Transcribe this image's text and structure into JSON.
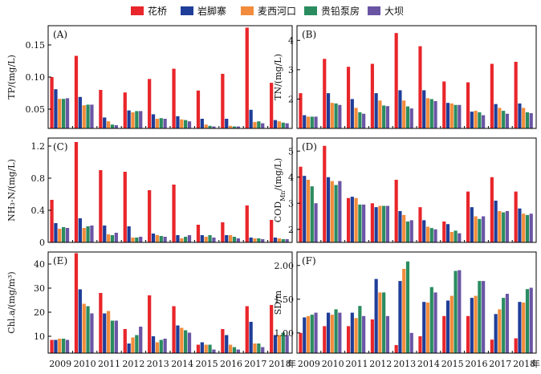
{
  "legend": [
    "花桥",
    "岩脚寨",
    "麦西河口",
    "贵铅泵房",
    "大坝"
  ],
  "colors": [
    "#e8262b",
    "#1f3e99",
    "#f28c3c",
    "#2a8c5f",
    "#6a55a5"
  ],
  "chart_data": [
    {
      "type": "bar",
      "panel_label": "(A)",
      "ylabel": "TP/(mg/L)",
      "ylim": [
        0.02,
        0.18
      ],
      "yticks": [
        0.05,
        0.1,
        0.15
      ],
      "ytick_labels": [
        "0.05",
        "0.10",
        "0.15"
      ],
      "categories": [
        "2009",
        "2010",
        "2011",
        "2012",
        "2013",
        "2014",
        "2015",
        "2016",
        "2017",
        "2018"
      ],
      "series": [
        {
          "name": "花桥",
          "values": [
            0.1,
            0.133,
            0.08,
            0.076,
            0.097,
            0.113,
            0.079,
            0.105,
            0.177,
            0.091
          ]
        },
        {
          "name": "岩脚寨",
          "values": [
            0.081,
            0.069,
            0.037,
            0.048,
            0.042,
            0.039,
            0.035,
            0.035,
            0.049,
            0.033
          ]
        },
        {
          "name": "麦西河口",
          "values": [
            0.066,
            0.056,
            0.031,
            0.045,
            0.035,
            0.034,
            0.026,
            0.024,
            0.03,
            0.031
          ]
        },
        {
          "name": "贵铅泵房",
          "values": [
            0.066,
            0.057,
            0.026,
            0.047,
            0.036,
            0.033,
            0.024,
            0.023,
            0.031,
            0.029
          ]
        },
        {
          "name": "大坝",
          "values": [
            0.067,
            0.057,
            0.025,
            0.047,
            0.035,
            0.031,
            0.023,
            0.023,
            0.028,
            0.028
          ]
        }
      ]
    },
    {
      "type": "bar",
      "panel_label": "(B)",
      "ylabel": "TN/(mg/L)",
      "ylim": [
        1.0,
        4.5
      ],
      "yticks": [
        2,
        3,
        4
      ],
      "ytick_labels": [
        "2",
        "3",
        "4"
      ],
      "categories": [
        "2009",
        "2010",
        "2011",
        "2012",
        "2013",
        "2014",
        "2015",
        "2016",
        "2017",
        "2018"
      ],
      "series": [
        {
          "name": "花桥",
          "values": [
            2.2,
            3.37,
            3.1,
            3.2,
            4.25,
            3.8,
            2.6,
            2.57,
            3.2,
            3.27
          ]
        },
        {
          "name": "岩脚寨",
          "values": [
            1.45,
            2.2,
            2.0,
            2.2,
            2.3,
            2.3,
            1.87,
            1.57,
            1.83,
            1.85
          ]
        },
        {
          "name": "麦西河口",
          "values": [
            1.4,
            1.87,
            1.7,
            1.95,
            1.95,
            2.03,
            1.85,
            1.6,
            1.7,
            1.7
          ]
        },
        {
          "name": "贵铅泵房",
          "values": [
            1.4,
            1.85,
            1.55,
            1.78,
            1.75,
            2.0,
            1.8,
            1.55,
            1.6,
            1.55
          ]
        },
        {
          "name": "大坝",
          "values": [
            1.4,
            1.8,
            1.5,
            1.76,
            1.68,
            1.93,
            1.8,
            1.45,
            1.5,
            1.52
          ]
        }
      ]
    },
    {
      "type": "bar",
      "panel_label": "(C)",
      "ylabel": "NH₃-N/(mg/L)",
      "ylim": [
        0,
        1.3
      ],
      "yticks": [
        0,
        0.4,
        0.8,
        1.2
      ],
      "ytick_labels": [
        "0",
        "0.4",
        "0.8",
        "1.2"
      ],
      "categories": [
        "2009",
        "2010",
        "2011",
        "2012",
        "2013",
        "2014",
        "2015",
        "2016",
        "2017",
        "2018"
      ],
      "series": [
        {
          "name": "花桥",
          "values": [
            0.53,
            1.25,
            0.9,
            0.88,
            0.65,
            0.72,
            0.22,
            0.25,
            0.46,
            0.28
          ]
        },
        {
          "name": "岩脚寨",
          "values": [
            0.24,
            0.3,
            0.21,
            0.2,
            0.11,
            0.09,
            0.09,
            0.09,
            0.06,
            0.06
          ]
        },
        {
          "name": "麦西河口",
          "values": [
            0.17,
            0.18,
            0.1,
            0.06,
            0.09,
            0.05,
            0.07,
            0.09,
            0.05,
            0.05
          ]
        },
        {
          "name": "贵铅泵房",
          "values": [
            0.19,
            0.2,
            0.09,
            0.06,
            0.08,
            0.07,
            0.09,
            0.07,
            0.05,
            0.04
          ]
        },
        {
          "name": "大坝",
          "values": [
            0.18,
            0.21,
            0.12,
            0.07,
            0.07,
            0.09,
            0.06,
            0.05,
            0.04,
            0.04
          ]
        }
      ]
    },
    {
      "type": "bar",
      "panel_label": "(D)",
      "ylabel": "COD_Mn/(mg/L)",
      "ylim": [
        1.5,
        5.5
      ],
      "yticks": [
        2,
        3,
        4,
        5
      ],
      "ytick_labels": [
        "2",
        "3",
        "4",
        "5"
      ],
      "categories": [
        "2009",
        "2010",
        "2011",
        "2012",
        "2013",
        "2014",
        "2015",
        "2016",
        "2017",
        "2018"
      ],
      "series": [
        {
          "name": "花桥",
          "values": [
            4.4,
            5.2,
            3.2,
            3.0,
            3.9,
            2.85,
            2.3,
            3.45,
            4.0,
            3.45
          ]
        },
        {
          "name": "岩脚寨",
          "values": [
            4.05,
            4.0,
            3.25,
            2.85,
            2.7,
            2.35,
            2.2,
            2.85,
            3.1,
            2.8
          ]
        },
        {
          "name": "麦西河口",
          "values": [
            3.9,
            3.85,
            3.2,
            2.9,
            2.55,
            2.1,
            1.9,
            2.5,
            2.7,
            2.6
          ]
        },
        {
          "name": "贵铅泵房",
          "values": [
            3.65,
            3.7,
            2.95,
            2.9,
            2.3,
            2.05,
            1.95,
            2.4,
            2.65,
            2.55
          ]
        },
        {
          "name": "大坝",
          "values": [
            3.0,
            3.85,
            2.95,
            2.9,
            2.35,
            2.0,
            1.85,
            2.5,
            2.7,
            2.6
          ]
        }
      ]
    },
    {
      "type": "bar",
      "panel_label": "(E)",
      "ylabel": "Chl.a/(mg/m³)",
      "ylim": [
        3,
        45
      ],
      "yticks": [
        10,
        20,
        30,
        40
      ],
      "ytick_labels": [
        "10",
        "20",
        "30",
        "40"
      ],
      "categories": [
        "2009",
        "2010",
        "2011",
        "2012",
        "2013",
        "2014",
        "2015",
        "2016",
        "2017",
        "2018"
      ],
      "series": [
        {
          "name": "花桥",
          "values": [
            8.5,
            44.5,
            28.0,
            13.0,
            27.0,
            22.5,
            6.5,
            13.0,
            22.5,
            23.0
          ]
        },
        {
          "name": "岩脚寨",
          "values": [
            8.5,
            29.5,
            19.5,
            7.0,
            10.0,
            14.5,
            7.5,
            10.5,
            16.0,
            10.5
          ]
        },
        {
          "name": "麦西河口",
          "values": [
            9.0,
            23.5,
            20.5,
            9.5,
            7.5,
            13.5,
            6.5,
            6.5,
            7.0,
            10.5
          ]
        },
        {
          "name": "贵铅泵房",
          "values": [
            9.0,
            22.5,
            16.5,
            10.5,
            8.5,
            12.5,
            6.5,
            5.5,
            7.0,
            11.5
          ]
        },
        {
          "name": "大坝",
          "values": [
            8.5,
            19.5,
            16.5,
            14.0,
            9.0,
            11.5,
            4.5,
            4.5,
            5.5,
            10.5
          ]
        }
      ]
    },
    {
      "type": "bar",
      "panel_label": "(F)",
      "ylabel": "SD/m",
      "ylim": [
        0.7,
        2.2
      ],
      "yticks": [
        1.0,
        1.5,
        2.0
      ],
      "ytick_labels": [
        "1.00",
        "1.50",
        "2.00"
      ],
      "categories": [
        "2009",
        "2010",
        "2011",
        "2012",
        "2013",
        "2014",
        "2015",
        "2016",
        "2017",
        "2018"
      ],
      "series": [
        {
          "name": "花桥",
          "values": [
            1.0,
            1.1,
            1.1,
            1.2,
            0.82,
            0.95,
            1.25,
            1.25,
            0.9,
            0.92
          ]
        },
        {
          "name": "岩脚寨",
          "values": [
            1.23,
            1.3,
            1.3,
            1.8,
            1.77,
            1.46,
            1.48,
            1.52,
            1.28,
            1.46
          ]
        },
        {
          "name": "麦西河口",
          "values": [
            1.25,
            1.27,
            1.22,
            1.6,
            1.95,
            1.45,
            1.55,
            1.55,
            1.35,
            1.45
          ]
        },
        {
          "name": "贵铅泵房",
          "values": [
            1.27,
            1.35,
            1.4,
            1.6,
            2.06,
            1.68,
            1.92,
            1.77,
            1.52,
            1.65
          ]
        },
        {
          "name": "大坝",
          "values": [
            1.3,
            1.3,
            1.25,
            1.25,
            1.0,
            1.6,
            1.93,
            1.77,
            1.58,
            1.67
          ]
        }
      ]
    }
  ],
  "x_axis_labels": [
    "2009",
    "2010",
    "2011",
    "2012",
    "2013",
    "2014",
    "2015",
    "2016",
    "2017",
    "2018"
  ],
  "x_axis_unit": "年"
}
